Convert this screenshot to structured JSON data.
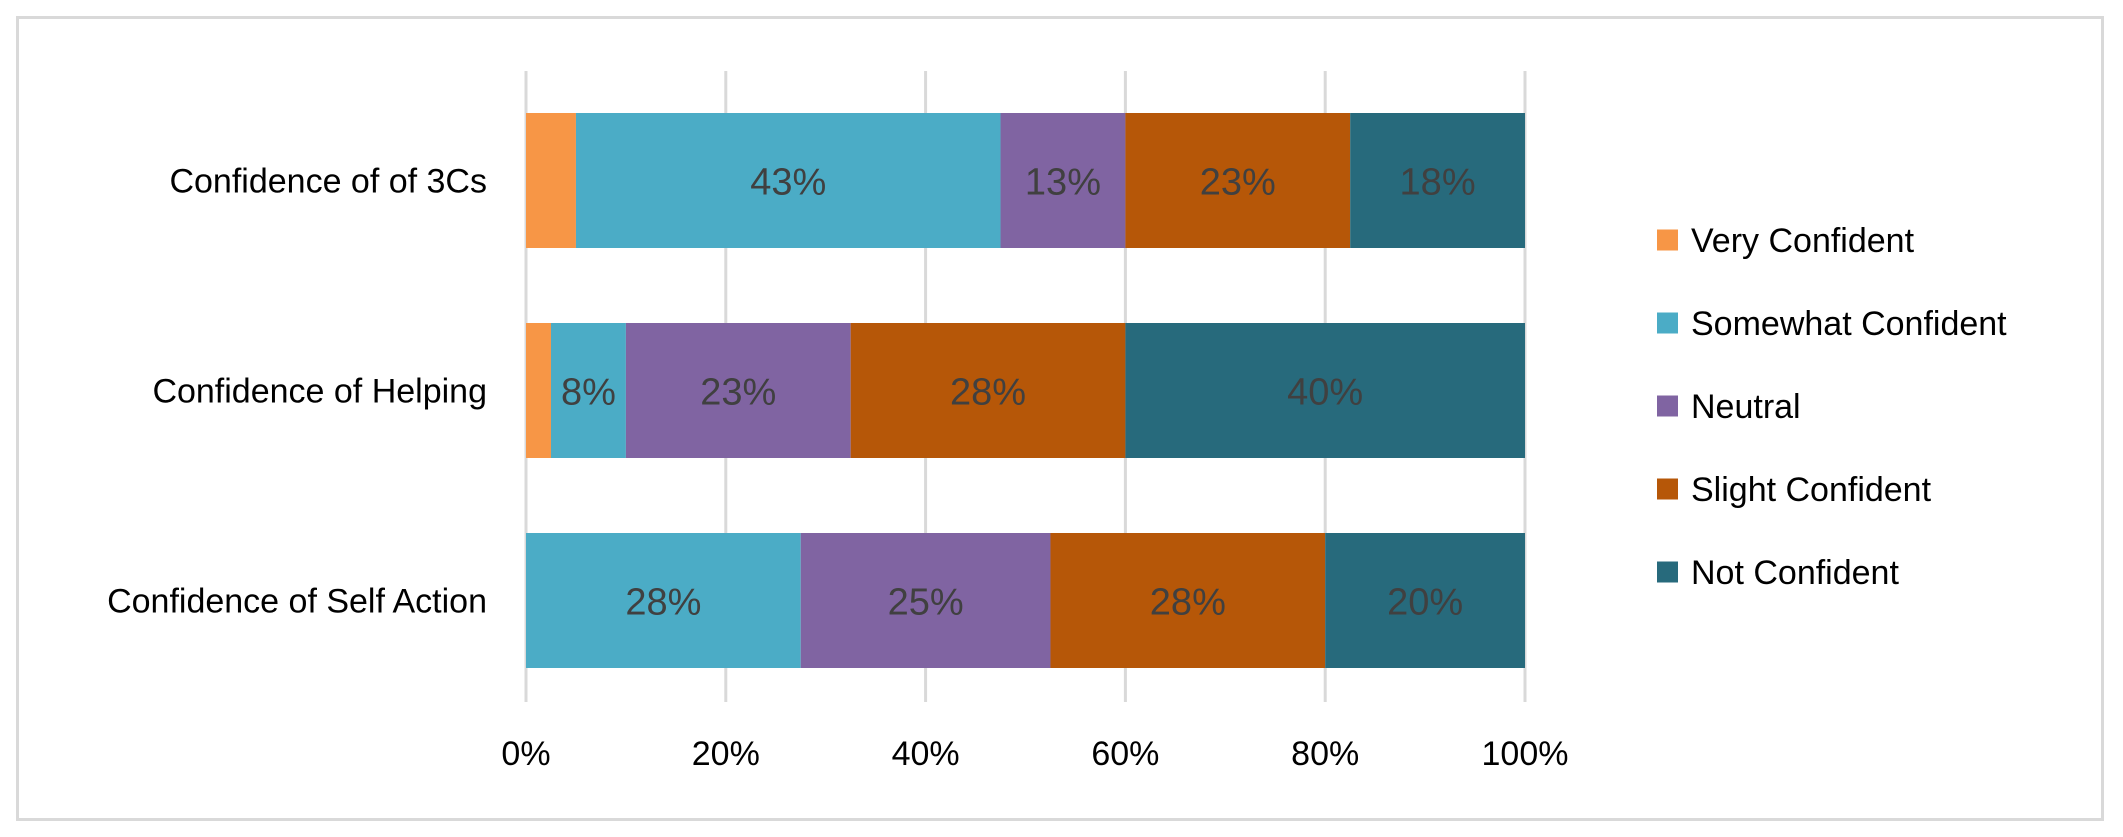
{
  "chart_data": {
    "type": "bar",
    "orientation": "horizontal",
    "stacked": "percent",
    "title": "",
    "xlabel": "",
    "ylabel": "",
    "xlim": [
      0,
      100
    ],
    "x_ticks": [
      "0%",
      "20%",
      "40%",
      "60%",
      "80%",
      "100%"
    ],
    "grid": "vertical",
    "legend_position": "right",
    "categories": [
      "Confidence of of 3Cs",
      "Confidence of Helping",
      "Confidence of Self Action"
    ],
    "series": [
      {
        "name": "Very Confident",
        "color": "#F79646",
        "values": [
          5,
          2.5,
          0
        ],
        "labels": [
          "",
          "",
          ""
        ]
      },
      {
        "name": "Somewhat Confident",
        "color": "#4BACC6",
        "values": [
          42.5,
          7.5,
          27.5
        ],
        "labels": [
          "43%",
          "8%",
          "28%"
        ]
      },
      {
        "name": "Neutral",
        "color": "#8064A2",
        "values": [
          12.5,
          22.5,
          25
        ],
        "labels": [
          "13%",
          "23%",
          "25%"
        ]
      },
      {
        "name": "Slight Confident",
        "color": "#B65708",
        "values": [
          22.5,
          27.5,
          27.5
        ],
        "labels": [
          "23%",
          "28%",
          "28%"
        ]
      },
      {
        "name": "Not Confident",
        "color": "#276A7C",
        "values": [
          17.5,
          40,
          20
        ],
        "labels": [
          "18%",
          "40%",
          "20%"
        ]
      }
    ]
  }
}
